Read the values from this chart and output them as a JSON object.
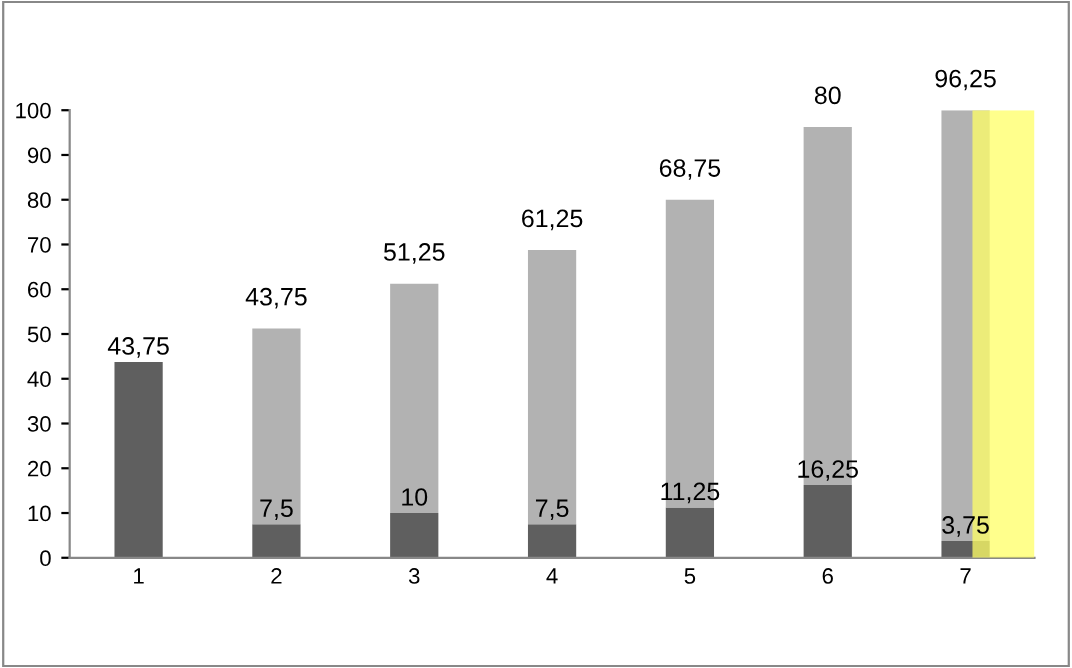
{
  "chart_data": {
    "type": "bar",
    "stacked": true,
    "categories": [
      "1",
      "2",
      "3",
      "4",
      "5",
      "6",
      "7"
    ],
    "series": [
      {
        "color": "#5f5f5f",
        "values": [
          43.75,
          7.5,
          10,
          7.5,
          11.25,
          16.25,
          3.75
        ],
        "value_labels": [
          "43,75",
          "7,5",
          "10",
          "7,5",
          "11,25",
          "16,25",
          "3,75"
        ]
      },
      {
        "color": "#b2b2b2",
        "values": [
          null,
          43.75,
          51.25,
          61.25,
          68.75,
          80,
          96.25
        ],
        "value_labels": [
          null,
          "43,75",
          "51,25",
          "61,25",
          "68,75",
          "80",
          "96,25"
        ]
      }
    ],
    "ylim": [
      0,
      100
    ],
    "yticks": [
      0,
      10,
      20,
      30,
      40,
      50,
      60,
      70,
      80,
      90,
      100
    ],
    "grid": false,
    "legend": false,
    "bands": [
      {
        "axis": "x",
        "from": "7",
        "to": "7",
        "color": "#ffff66"
      }
    ]
  }
}
